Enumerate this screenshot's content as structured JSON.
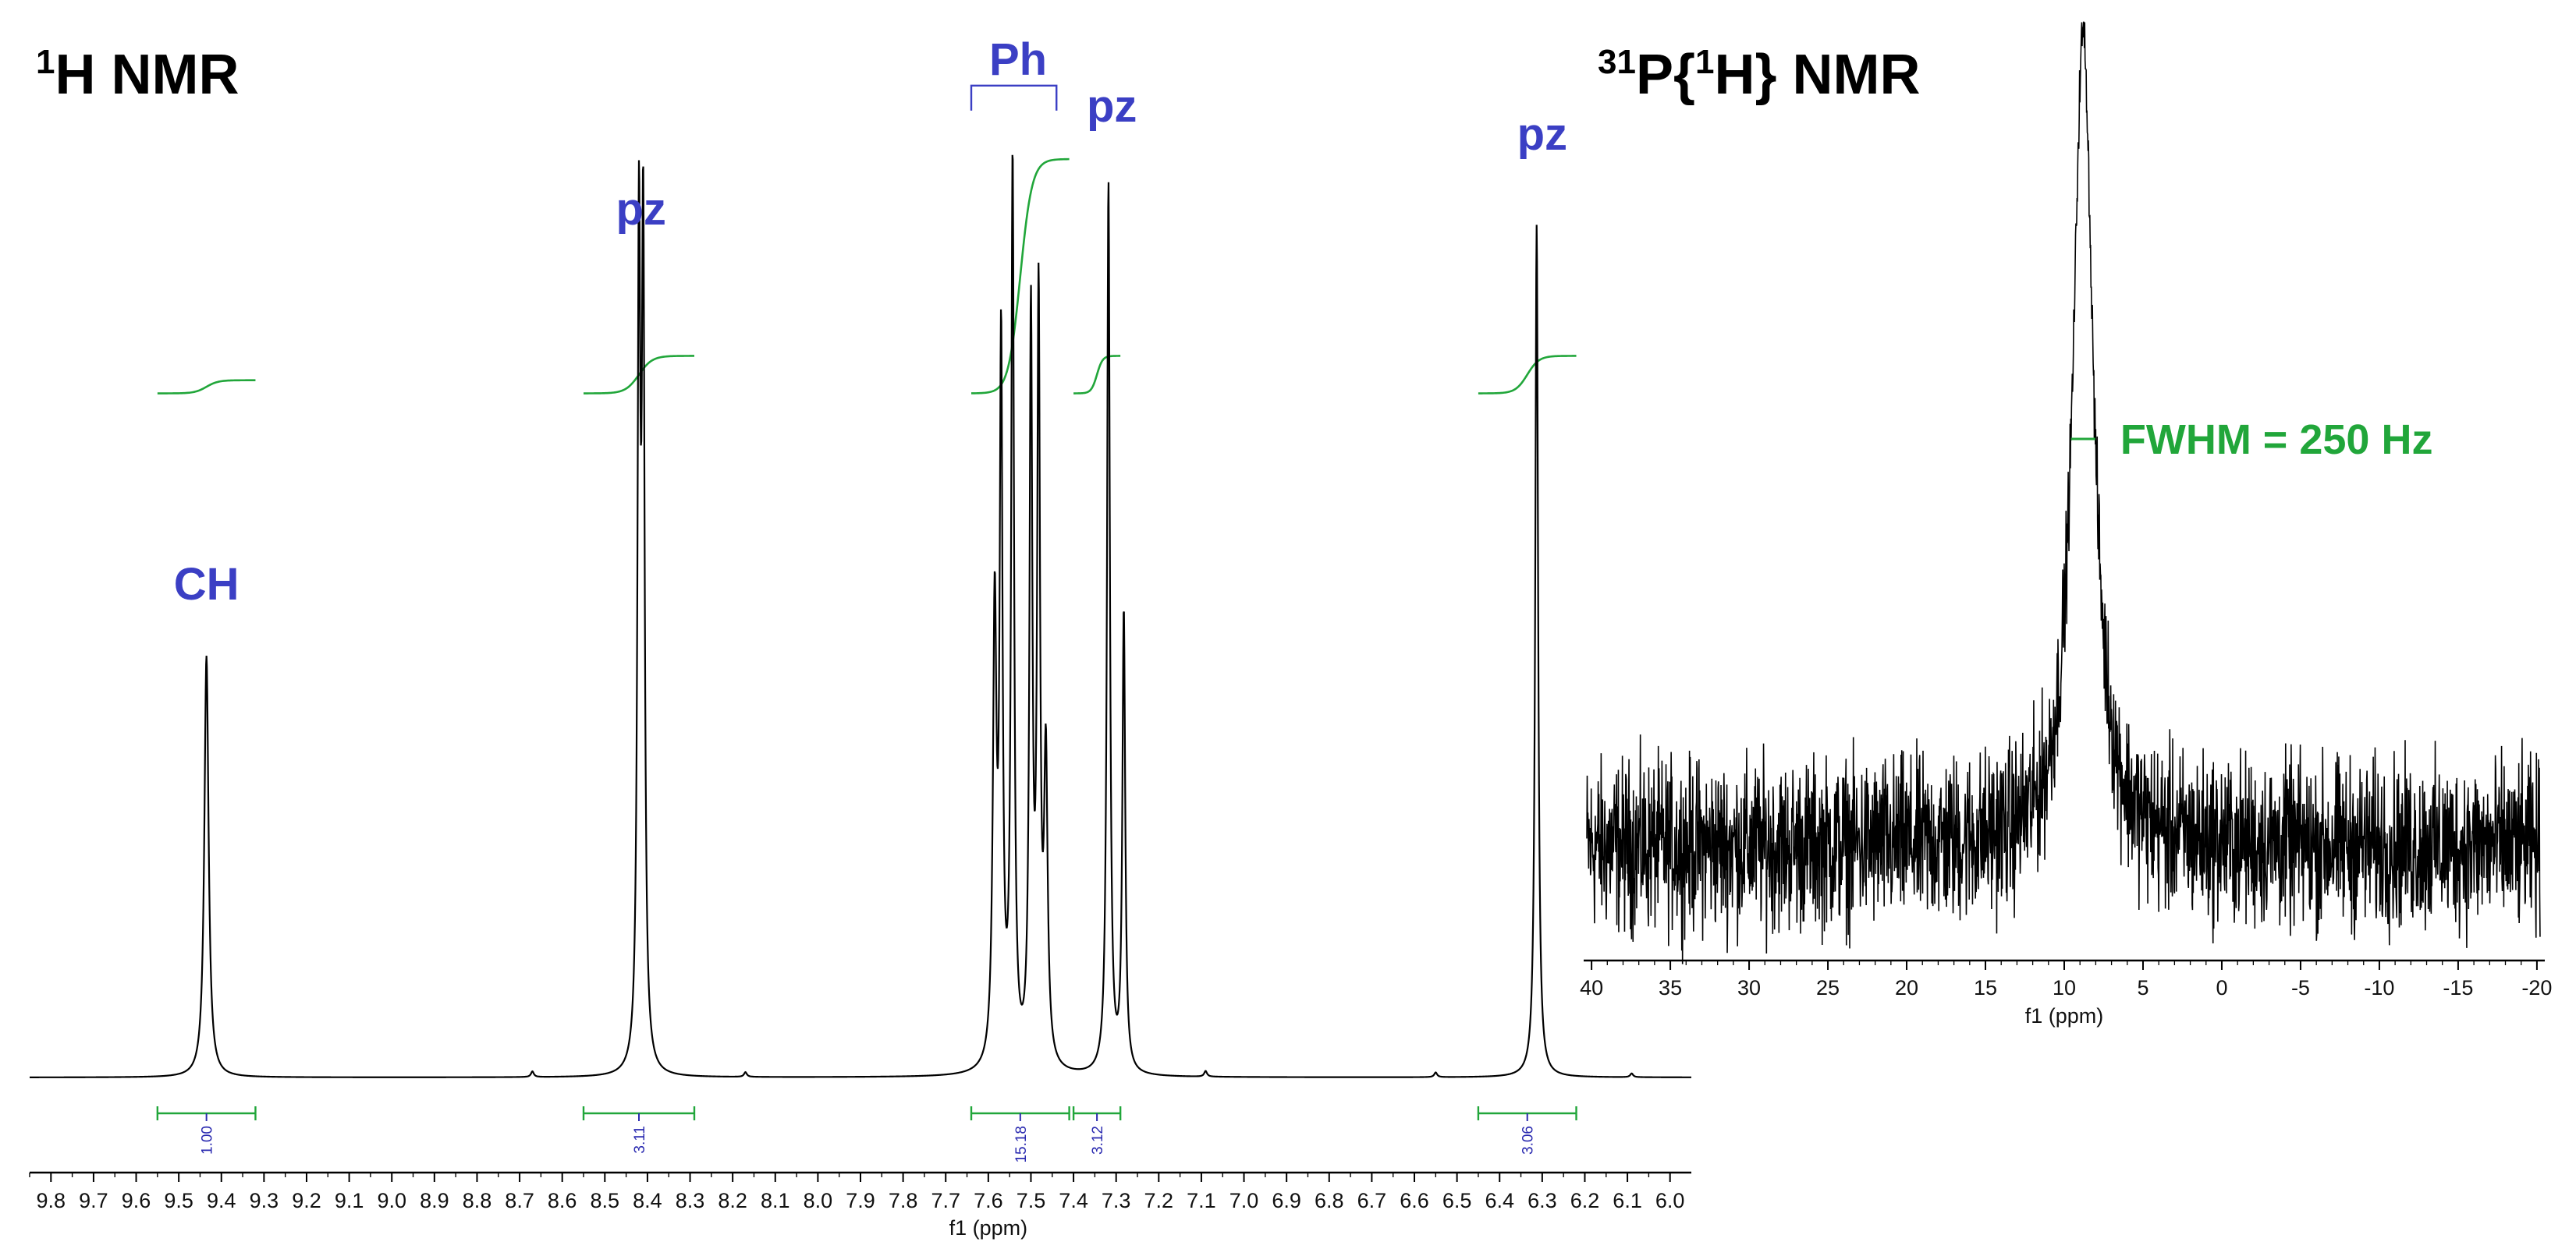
{
  "colors": {
    "spectrum": "#000000",
    "integral": "#21a63a",
    "label": "#3b3fc4",
    "integral_value": "#2a2ab0",
    "fwhm": "#21a63a"
  },
  "chart_data": [
    {
      "type": "line",
      "title_sup": "1",
      "title_main": "H NMR",
      "xlabel": "f1 (ppm)",
      "xlim": [
        9.85,
        5.95
      ],
      "x_reversed": true,
      "xticks": [
        9.8,
        9.7,
        9.6,
        9.5,
        9.4,
        9.3,
        9.2,
        9.1,
        9.0,
        8.9,
        8.8,
        8.7,
        8.6,
        8.5,
        8.4,
        8.3,
        8.2,
        8.1,
        8.0,
        7.9,
        7.8,
        7.7,
        7.6,
        7.5,
        7.4,
        7.3,
        7.2,
        7.1,
        7.0,
        6.9,
        6.8,
        6.7,
        6.6,
        6.5,
        6.4,
        6.3,
        6.2,
        6.1,
        6.0
      ],
      "y_relative_height": true,
      "peaks": [
        {
          "ppm": 9.435,
          "height": 0.45,
          "width": 0.006
        },
        {
          "ppm": 8.42,
          "height": 0.86,
          "width": 0.004
        },
        {
          "ppm": 8.41,
          "height": 0.86,
          "width": 0.004
        },
        {
          "ppm": 7.585,
          "height": 0.48,
          "width": 0.005
        },
        {
          "ppm": 7.57,
          "height": 0.75,
          "width": 0.004
        },
        {
          "ppm": 7.543,
          "height": 0.96,
          "width": 0.004
        },
        {
          "ppm": 7.5,
          "height": 0.79,
          "width": 0.004
        },
        {
          "ppm": 7.482,
          "height": 0.8,
          "width": 0.004
        },
        {
          "ppm": 7.465,
          "height": 0.32,
          "width": 0.005
        },
        {
          "ppm": 7.318,
          "height": 0.95,
          "width": 0.004
        },
        {
          "ppm": 7.282,
          "height": 0.49,
          "width": 0.004
        },
        {
          "ppm": 6.313,
          "height": 0.91,
          "width": 0.004
        },
        {
          "ppm": 8.67,
          "height": 0.006,
          "width": 0.004
        },
        {
          "ppm": 8.17,
          "height": 0.005,
          "width": 0.004
        },
        {
          "ppm": 7.09,
          "height": 0.006,
          "width": 0.004
        },
        {
          "ppm": 6.55,
          "height": 0.005,
          "width": 0.004
        },
        {
          "ppm": 6.09,
          "height": 0.004,
          "width": 0.004
        }
      ],
      "peak_labels": [
        {
          "text": "CH",
          "ppm": 9.435,
          "level": 0.51
        },
        {
          "text": "pz",
          "ppm": 8.415,
          "level": 0.91
        },
        {
          "text": "Ph",
          "ppm": 7.53,
          "level": 1.07,
          "bracket_from": 7.64,
          "bracket_to": 7.44
        },
        {
          "text": "pz",
          "ppm": 7.31,
          "level": 1.02
        },
        {
          "text": "pz",
          "ppm": 6.3,
          "level": 0.99
        }
      ],
      "integrals": [
        {
          "from": 9.55,
          "to": 9.32,
          "value": "1.00",
          "base": 0.73,
          "rise": 0.014
        },
        {
          "from": 8.55,
          "to": 8.29,
          "value": "3.11",
          "base": 0.73,
          "rise": 0.04
        },
        {
          "from": 7.64,
          "to": 7.41,
          "value": "15.18",
          "base": 0.73,
          "rise": 0.25
        },
        {
          "from": 7.4,
          "to": 7.29,
          "value": "3.12",
          "base": 0.73,
          "rise": 0.04
        },
        {
          "from": 6.45,
          "to": 6.22,
          "value": "3.06",
          "base": 0.73,
          "rise": 0.04
        }
      ]
    },
    {
      "type": "line",
      "title_sup1": "31",
      "title_mid": "P{",
      "title_sup2": "1",
      "title_end": "H} NMR",
      "xlabel": "f1 (ppm)",
      "xlim": [
        40.5,
        -20.5
      ],
      "x_reversed": true,
      "xticks": [
        40,
        35,
        30,
        25,
        20,
        15,
        10,
        5,
        0,
        -5,
        -10,
        -15,
        -20
      ],
      "xtick_labels": [
        "40",
        "35",
        "30",
        "25",
        "20",
        "15",
        "10",
        "5",
        "0",
        "-5",
        "-10",
        "-15",
        "-20"
      ],
      "peak": {
        "ppm": 8.8,
        "height": 1.0,
        "fwhm_ppm": 1.55
      },
      "noise_level": 0.085,
      "baseline": 0.0,
      "fwhm_label": "FWHM = 250 Hz"
    }
  ]
}
